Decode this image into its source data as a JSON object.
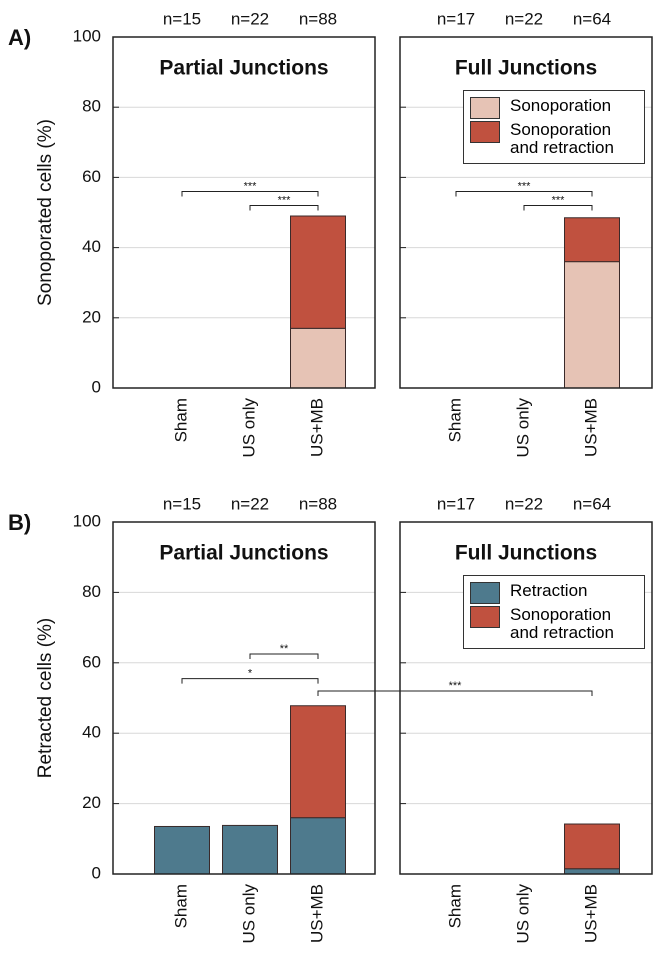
{
  "chart_data": [
    {
      "type": "bar",
      "stacked": true,
      "panel_label": "A)",
      "title": "Partial Junctions",
      "ylabel": "Sonoporated cells (%)",
      "categories": [
        "Sham",
        "US only",
        "US+MB"
      ],
      "n_labels": [
        "n=15",
        "n=22",
        "n=88"
      ],
      "series": [
        {
          "name": "Sonoporation",
          "color": "#e6c3b5",
          "values": [
            0,
            0,
            17
          ]
        },
        {
          "name": "Sonoporation and retraction",
          "color": "#c0513f",
          "values": [
            0,
            0,
            32
          ]
        }
      ],
      "ylim": [
        0,
        100
      ],
      "yticks": [
        0,
        20,
        40,
        60,
        80,
        100
      ],
      "grid": true,
      "significance": [
        {
          "label": "***",
          "from": "Sham",
          "to": "US+MB",
          "y": 56
        },
        {
          "label": "***",
          "from": "US only",
          "to": "US+MB",
          "y": 52
        }
      ]
    },
    {
      "type": "bar",
      "stacked": true,
      "title": "Full Junctions",
      "categories": [
        "Sham",
        "US only",
        "US+MB"
      ],
      "n_labels": [
        "n=17",
        "n=22",
        "n=64"
      ],
      "series": [
        {
          "name": "Sonoporation",
          "color": "#e6c3b5",
          "values": [
            0,
            0,
            36
          ]
        },
        {
          "name": "Sonoporation and retraction",
          "color": "#c0513f",
          "values": [
            0,
            0,
            12.5
          ]
        }
      ],
      "ylim": [
        0,
        100
      ],
      "yticks": [
        0,
        20,
        40,
        60,
        80,
        100
      ],
      "grid": true,
      "legend": "upper right",
      "significance": [
        {
          "label": "***",
          "from": "Sham",
          "to": "US+MB",
          "y": 56
        },
        {
          "label": "***",
          "from": "US only",
          "to": "US+MB",
          "y": 52
        }
      ]
    },
    {
      "type": "bar",
      "stacked": true,
      "panel_label": "B)",
      "title": "Partial Junctions",
      "ylabel": "Retracted cells (%)",
      "categories": [
        "Sham",
        "US only",
        "US+MB"
      ],
      "n_labels": [
        "n=15",
        "n=22",
        "n=88"
      ],
      "series": [
        {
          "name": "Retraction",
          "color": "#4e7a8d",
          "values": [
            13.5,
            13.8,
            16
          ]
        },
        {
          "name": "Sonoporation and retraction",
          "color": "#c0513f",
          "values": [
            0,
            0,
            31.8
          ]
        }
      ],
      "ylim": [
        0,
        100
      ],
      "yticks": [
        0,
        20,
        40,
        60,
        80,
        100
      ],
      "grid": true,
      "significance": [
        {
          "label": "**",
          "from": "US only",
          "to": "US+MB",
          "y": 62.5
        },
        {
          "label": "*",
          "from": "Sham",
          "to": "US+MB",
          "y": 55.5
        },
        {
          "label": "***",
          "from": "US+MB",
          "to": "US+MB",
          "to_chart_title": "Full Junctions",
          "y": 52
        }
      ]
    },
    {
      "type": "bar",
      "stacked": true,
      "title": "Full Junctions",
      "categories": [
        "Sham",
        "US only",
        "US+MB"
      ],
      "n_labels": [
        "n=17",
        "n=22",
        "n=64"
      ],
      "series": [
        {
          "name": "Retraction",
          "color": "#4e7a8d",
          "values": [
            0,
            0,
            1.5
          ]
        },
        {
          "name": "Sonoporation and retraction",
          "color": "#c0513f",
          "values": [
            0,
            0,
            12.7
          ]
        }
      ],
      "ylim": [
        0,
        100
      ],
      "yticks": [
        0,
        20,
        40,
        60,
        80,
        100
      ],
      "grid": true,
      "legend": "upper right",
      "significance": []
    }
  ]
}
